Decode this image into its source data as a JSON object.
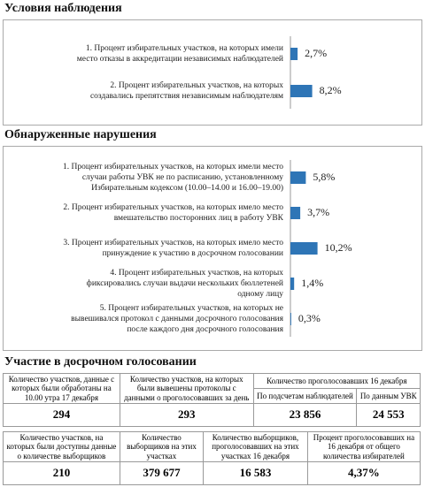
{
  "chart_data": [
    {
      "type": "bar",
      "title": "Условия наблюдения",
      "color": "#2e75b6",
      "categories": [
        [
          "1. Процент избирательных участков, на которых имели",
          "место отказы в аккредитации независимых наблюдателей"
        ],
        [
          "2. Процент избирательных участков, на которых",
          "создавались препятствия независимым наблюдателям"
        ]
      ],
      "values": [
        2.7,
        8.2
      ],
      "value_labels": [
        "2,7%",
        "8,2%"
      ]
    },
    {
      "type": "bar",
      "title": "Обнаруженные нарушения",
      "color": "#2e75b6",
      "categories": [
        [
          "1. Процент избирательных участков, на которых имели место",
          "случаи работы УВК не по расписанию, установленному",
          "Избирательным кодексом (10.00–14.00 и 16.00–19.00)"
        ],
        [
          "2. Процент избирательных участков, на которых имело место",
          "вмешательство посторонних лиц в работу УВК"
        ],
        [
          "3. Процент избирательных участков, на которых имело место",
          "принуждение к участию в досрочном голосовании"
        ],
        [
          "4. Процент избирательных участков, на которых",
          "фиксировались случаи выдачи нескольких бюллетеней",
          "одному лицу"
        ],
        [
          "5. Процент избирательных участков, на которых не",
          "вывешивался протокол с данными досрочного голосования",
          "после каждого дня досрочного голосования"
        ]
      ],
      "values": [
        5.8,
        3.7,
        10.2,
        1.4,
        0.3
      ],
      "value_labels": [
        "5,8%",
        "3,7%",
        "10,2%",
        "1,4%",
        "0,3%"
      ]
    }
  ],
  "section": {
    "title": "Участие в досрочном голосовании"
  },
  "tables": [
    {
      "headers": [
        "Количество участков, данные с которых были обработаны на 10.00 утра 17 декабря",
        "Количество участков, на которых были вывешены протоколы с данными о проголосовавших за день",
        "Количество проголосовавших 16 декабря"
      ],
      "subheaders": [
        "По подсчетам наблюдателей",
        "По данным УВК"
      ],
      "rows": [
        [
          "294",
          "293",
          "23 856",
          "24 553"
        ]
      ]
    },
    {
      "headers": [
        "Количество участков, на которых были доступны данные о количестве выборщиков",
        "Количество выборщиков на этих участках",
        "Количество выборщиков, проголосовавших на этих участках 16 декабря",
        "Процент проголосовавших на 16 декабря от общего количества избирателей"
      ],
      "rows": [
        [
          "210",
          "379 677",
          "16 583",
          "4,37%"
        ]
      ]
    }
  ]
}
